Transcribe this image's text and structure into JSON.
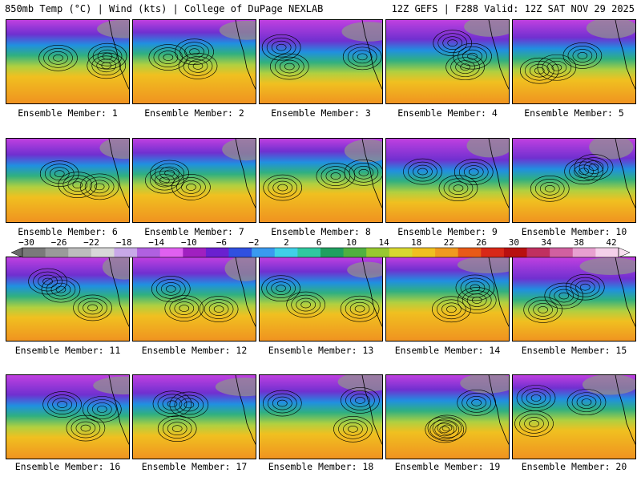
{
  "header": {
    "left": "850mb Temp (°C) | Wind (kts) | College of DuPage NEXLAB",
    "right": "12Z GEFS | F288 Valid: 12Z SAT NOV 29 2025"
  },
  "colorbar": {
    "labels": [
      "−30",
      "−26",
      "−22",
      "−18",
      "−14",
      "−10",
      "−6",
      "−2",
      "2",
      "6",
      "10",
      "14",
      "18",
      "22",
      "26",
      "30",
      "34",
      "38",
      "42"
    ],
    "colors": [
      "#7a7a7a",
      "#9a9a9a",
      "#bdbdbd",
      "#d8d8d8",
      "#c8a8e8",
      "#b060e0",
      "#e060f0",
      "#a020c0",
      "#6a20d0",
      "#3050e0",
      "#3a9af0",
      "#40d0e8",
      "#30c8a0",
      "#20a060",
      "#50b040",
      "#98c830",
      "#d8d830",
      "#f0c020",
      "#f09a20",
      "#e85a18",
      "#d82818",
      "#b81010",
      "#c03060",
      "#d060a0",
      "#e8a0d0",
      "#f5d0ea"
    ]
  },
  "panels": [
    {
      "label": "Ensemble Member: 1"
    },
    {
      "label": "Ensemble Member: 2"
    },
    {
      "label": "Ensemble Member: 3"
    },
    {
      "label": "Ensemble Member: 4"
    },
    {
      "label": "Ensemble Member: 5"
    },
    {
      "label": "Ensemble Member: 6"
    },
    {
      "label": "Ensemble Member: 7"
    },
    {
      "label": "Ensemble Member: 8"
    },
    {
      "label": "Ensemble Member: 9"
    },
    {
      "label": "Ensemble Member: 10"
    },
    {
      "label": "Ensemble Member: 11"
    },
    {
      "label": "Ensemble Member: 12"
    },
    {
      "label": "Ensemble Member: 13"
    },
    {
      "label": "Ensemble Member: 14"
    },
    {
      "label": "Ensemble Member: 15"
    },
    {
      "label": "Ensemble Member: 16"
    },
    {
      "label": "Ensemble Member: 17"
    },
    {
      "label": "Ensemble Member: 18"
    },
    {
      "label": "Ensemble Member: 19"
    },
    {
      "label": "Ensemble Member: 20"
    }
  ]
}
